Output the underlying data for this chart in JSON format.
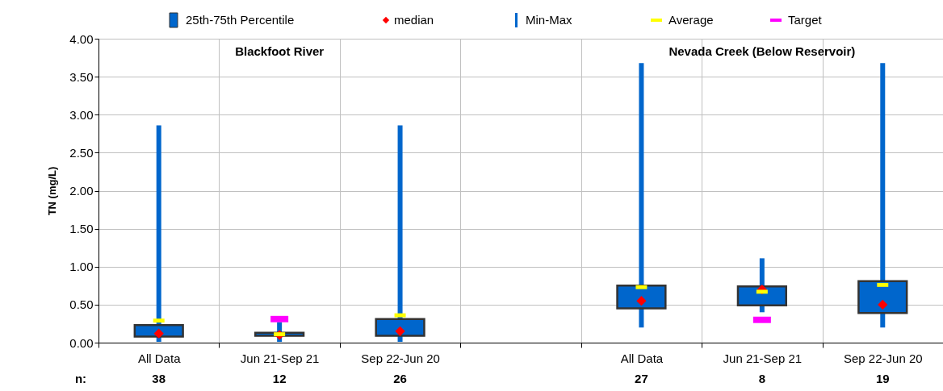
{
  "chart_data": {
    "type": "bar",
    "ylabel": "TN (mg/L)",
    "categories": [
      "All Data",
      "Jun 21-Sep 21",
      "Sep 22-Jun 20",
      null,
      "All Data",
      "Jun 21-Sep 21",
      "Sep 22-Jun 20"
    ],
    "series": [
      {
        "name": "25th-75th Percentile",
        "color": "#0066cc",
        "base": [
          0.08,
          0.09,
          0.09,
          null,
          0.45,
          0.49,
          0.39
        ],
        "values": [
          0.15,
          0.04,
          0.22,
          null,
          0.3,
          0.25,
          0.42
        ]
      },
      {
        "name": "median",
        "type": "scatter",
        "marker": "diamond",
        "color": "#ff0000",
        "values": [
          0.12,
          0.1,
          0.15,
          null,
          0.55,
          0.7,
          0.5
        ]
      },
      {
        "name": "Min-Max",
        "color": "#0066cc",
        "base": [
          0.01,
          0.01,
          0.01,
          null,
          0.2,
          0.4,
          0.2
        ],
        "values": [
          2.85,
          0.26,
          2.85,
          null,
          3.48,
          0.71,
          3.48
        ]
      },
      {
        "name": "Average",
        "type": "scatter",
        "color": "#ffff00",
        "values": [
          0.29,
          0.11,
          0.36,
          null,
          0.73,
          0.67,
          0.76
        ]
      },
      {
        "name": "Target",
        "type": "scatter",
        "color": "#ff00ff",
        "values": [
          null,
          0.31,
          null,
          null,
          null,
          0.3,
          null
        ]
      }
    ],
    "ylim": [
      0,
      4
    ],
    "yticks": [
      {
        "value": 0,
        "label": "0.00"
      },
      {
        "value": 0.5,
        "label": "0.50"
      },
      {
        "value": 1,
        "label": "1.00"
      },
      {
        "value": 1.5,
        "label": "1.50"
      },
      {
        "value": 2,
        "label": "2.00"
      },
      {
        "value": 2.5,
        "label": "2.50"
      },
      {
        "value": 3,
        "label": "3.00"
      },
      {
        "value": 3.5,
        "label": "3.50"
      },
      {
        "value": 4,
        "label": "4.00"
      }
    ],
    "grid": true,
    "legend": "top",
    "annotations": [
      "Blackfoot River",
      "Nevada Creek (Below Reservoir)",
      "n:",
      "38",
      "12",
      "26",
      "27",
      "8",
      "19"
    ]
  }
}
